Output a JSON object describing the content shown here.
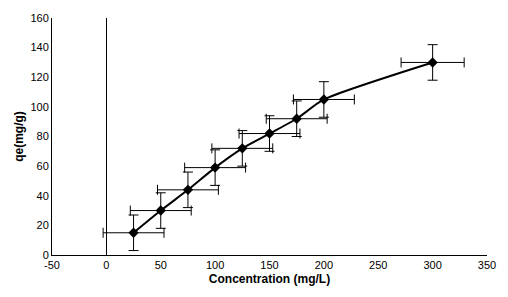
{
  "chart_data": {
    "type": "line",
    "x_label": "Concentration (mg/L)",
    "y_label": "qe(mg/g)",
    "x": [
      25,
      50,
      75,
      100,
      125,
      150,
      175,
      200,
      300
    ],
    "values": [
      15,
      30,
      44,
      59,
      72,
      82,
      92,
      105,
      130
    ],
    "x_error": [
      28,
      28,
      28,
      28,
      28,
      28,
      28,
      28,
      29
    ],
    "y_error": [
      12,
      12,
      12,
      12,
      12,
      12,
      12,
      12,
      12
    ],
    "color": "#000000",
    "marker": "diamond",
    "line_style": "solid",
    "xlim": [
      -50,
      350
    ],
    "xticks": [
      -50,
      0,
      50,
      100,
      150,
      200,
      250,
      300,
      350
    ],
    "ylim": [
      0,
      160
    ],
    "yticks": [
      0,
      20,
      40,
      60,
      80,
      100,
      120,
      140,
      160
    ],
    "grid": false
  }
}
